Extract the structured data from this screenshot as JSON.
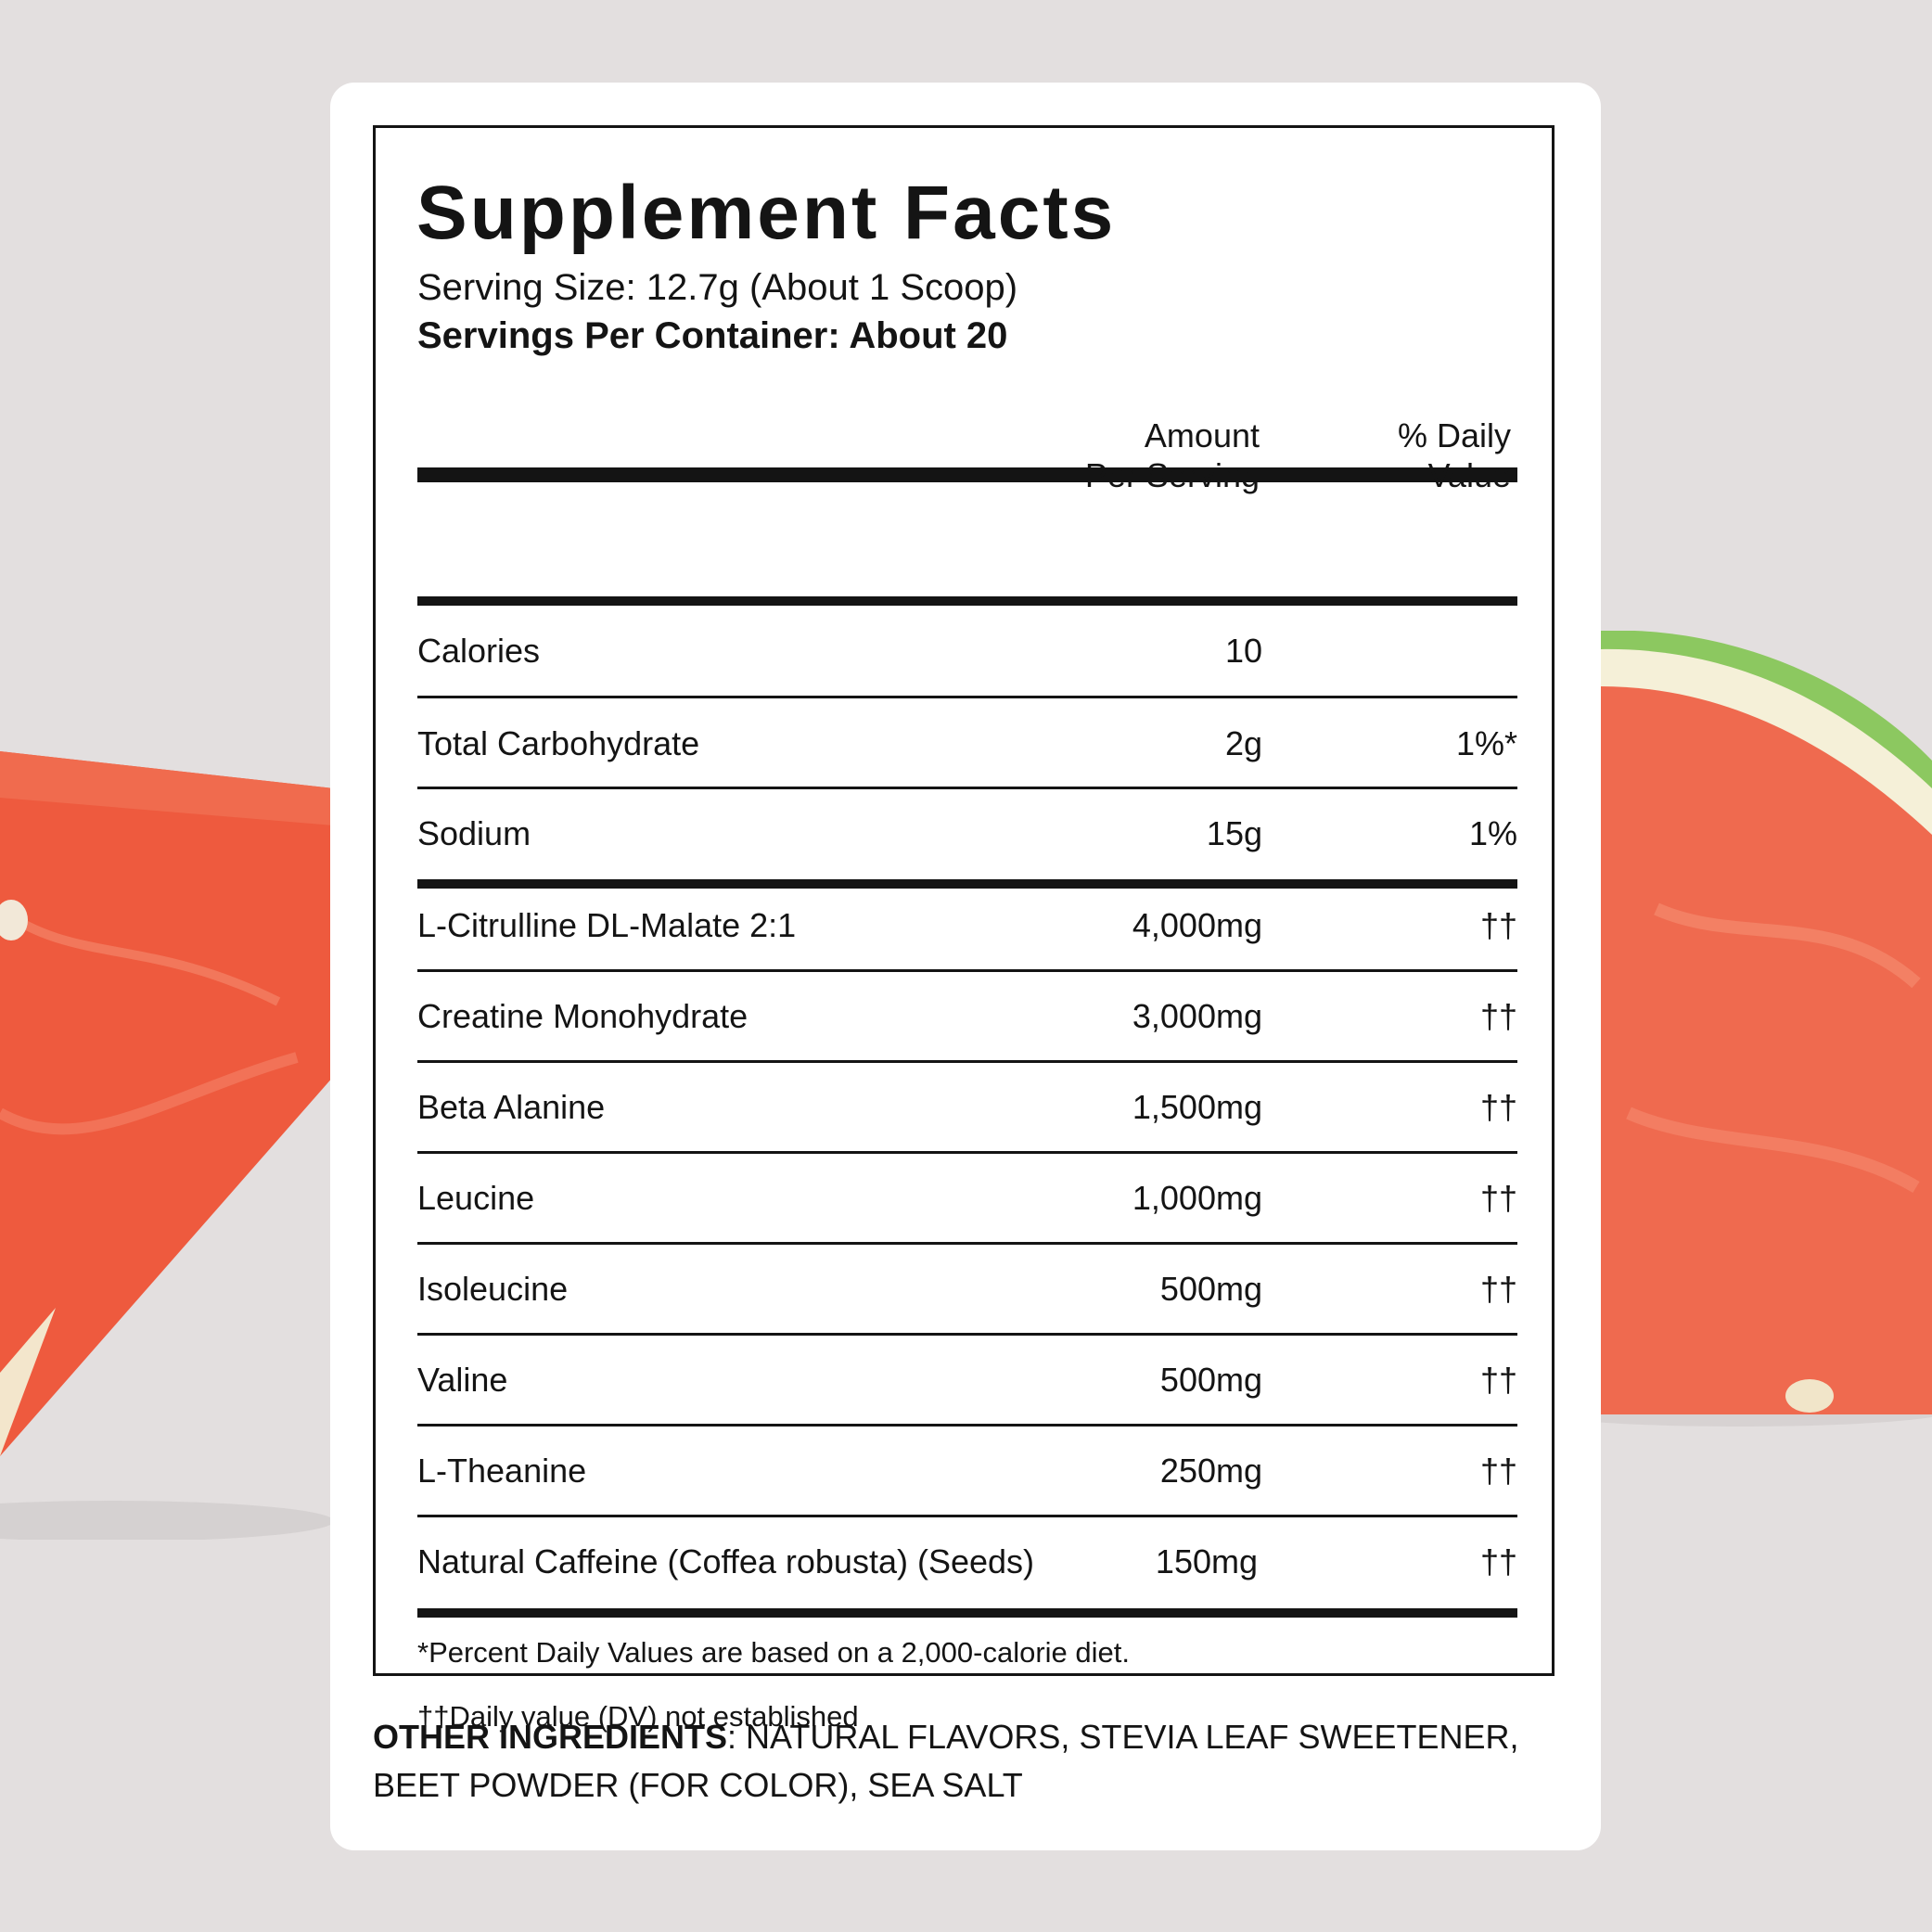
{
  "colors": {
    "background": "#e3dfdf",
    "card": "#ffffff",
    "ink": "#141414",
    "melon_red": "#ee5a3e",
    "melon_rind": "#8cc860"
  },
  "title": "Supplement Facts",
  "serving_size": "Serving Size: 12.7g (About 1 Scoop)",
  "servings_per_container": "Servings Per Container: About 20",
  "header": {
    "amount_line1": "Amount",
    "amount_line2": "Per Serving",
    "dv_line1": "% Daily",
    "dv_line2": "Value"
  },
  "rows": [
    {
      "name": "Calories",
      "amount": "10",
      "dv": ""
    },
    {
      "name": "Total Carbohydrate",
      "amount": "2g",
      "dv": "1%*"
    },
    {
      "name": "Sodium",
      "amount": "15g",
      "dv": "1%"
    },
    {
      "name": "L-Citrulline DL-Malate 2:1",
      "amount": "4,000mg",
      "dv": "††"
    },
    {
      "name": "Creatine Monohydrate",
      "amount": "3,000mg",
      "dv": "††"
    },
    {
      "name": "Beta Alanine",
      "amount": "1,500mg",
      "dv": "††"
    },
    {
      "name": "Leucine",
      "amount": "1,000mg",
      "dv": "††"
    },
    {
      "name": "Isoleucine",
      "amount": "500mg",
      "dv": "††"
    },
    {
      "name": "Valine",
      "amount": "500mg",
      "dv": "††"
    },
    {
      "name": "L-Theanine",
      "amount": "250mg",
      "dv": "††"
    },
    {
      "name": "Natural Caffeine (Coffea robusta) (Seeds)",
      "amount": "150mg",
      "dv": "††"
    }
  ],
  "footnotes": {
    "percent_note": "*Percent Daily Values are based on a 2,000-calorie diet.",
    "dagger_note": "††Daily value (DV) not established"
  },
  "other_ingredients": {
    "label": "OTHER INGREDIENTS",
    "text": ": NATURAL FLAVORS, STEVIA LEAF SWEETENER, BEET POWDER (FOR COLOR), SEA SALT"
  }
}
